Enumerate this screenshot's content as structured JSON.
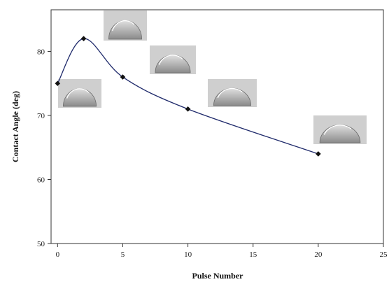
{
  "chart_data": {
    "type": "line",
    "title": "",
    "xlabel": "Pulse Number",
    "ylabel": "Contact Angle (deg)",
    "xlim": [
      -0.5,
      25
    ],
    "ylim": [
      50,
      86.5
    ],
    "xticks": [
      0,
      5,
      10,
      15,
      20,
      25
    ],
    "xtick_labels": [
      "0",
      "5",
      "10",
      "15",
      "20",
      "25"
    ],
    "yticks": [
      50,
      60,
      70,
      80
    ],
    "ytick_labels": [
      "50",
      "60",
      "70",
      "80"
    ],
    "grid": false,
    "legend": "none",
    "line_color": "#1f2a6b",
    "marker_color": "#111111",
    "points": [
      {
        "x": 0,
        "y": 75
      },
      {
        "x": 2,
        "y": 82
      },
      {
        "x": 5,
        "y": 76
      },
      {
        "x": 10,
        "y": 71
      },
      {
        "x": 20,
        "y": 64
      }
    ],
    "droplet_images": [
      "droplet-image",
      "droplet-image",
      "droplet-image",
      "droplet-image",
      "droplet-image"
    ]
  }
}
